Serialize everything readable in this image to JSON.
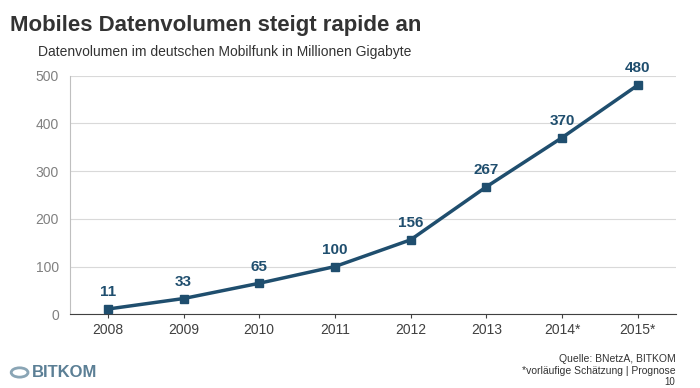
{
  "chart_data": {
    "type": "line",
    "title": "Mobiles Datenvolumen steigt rapide an",
    "subtitle": "Datenvolumen im deutschen Mobilfunk in Millionen Gigabyte",
    "categories": [
      "2008",
      "2009",
      "2010",
      "2011",
      "2012",
      "2013",
      "2014*",
      "2015*"
    ],
    "values": [
      11,
      33,
      65,
      100,
      156,
      267,
      370,
      480
    ],
    "color": "#1f4e6e",
    "marker": "square",
    "line_style": "solid",
    "data_labels": true,
    "ylim": [
      0,
      500
    ],
    "yticks": [
      0,
      100,
      200,
      300,
      400,
      500
    ],
    "grid": true,
    "source": "Quelle: BNetzA, BITKOM",
    "footnote": "*vorläufige Schätzung | Prognose",
    "page_number": "10",
    "logo": "BITKOM"
  }
}
